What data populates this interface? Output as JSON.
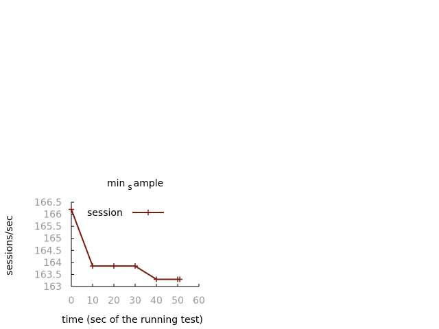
{
  "chart_data": {
    "type": "line",
    "title_main": "min",
    "title_sub": "s",
    "title_rest": "ample",
    "xlabel": "time (sec of the running test)",
    "ylabel": "sessions/sec",
    "xlim": [
      0,
      60
    ],
    "ylim": [
      163,
      166.5
    ],
    "x_ticks": [
      "0",
      "10",
      "20",
      "30",
      "40",
      "50",
      "60"
    ],
    "y_ticks": [
      "163",
      "163.5",
      "164",
      "164.5",
      "165",
      "165.5",
      "166",
      "166.5"
    ],
    "grid": false,
    "legend_position": "top-right",
    "series": [
      {
        "name": "session",
        "color": "#7a1a0f",
        "x": [
          0,
          10,
          20,
          30,
          40,
          50,
          51
        ],
        "y": [
          166.2,
          163.85,
          163.85,
          163.85,
          163.3,
          163.3,
          163.3
        ]
      }
    ]
  }
}
